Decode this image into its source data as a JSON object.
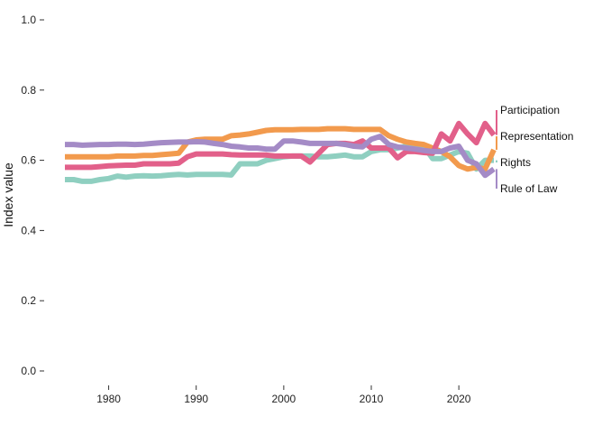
{
  "chart_data": {
    "type": "line",
    "title": "",
    "xlabel": "",
    "ylabel": "Index value",
    "xlim": [
      1975,
      2024
    ],
    "ylim": [
      0,
      1
    ],
    "x_ticks": [
      1980,
      1990,
      2000,
      2010,
      2020
    ],
    "y_ticks": [
      "0.0",
      "0.2",
      "0.4",
      "0.6",
      "0.8",
      "1.0"
    ],
    "grid": false,
    "legend": "direct labels at right end of lines",
    "series": [
      {
        "name": "Rights",
        "color": "#8fcfc0",
        "x": [
          1975,
          1976,
          1977,
          1978,
          1979,
          1980,
          1981,
          1982,
          1983,
          1984,
          1985,
          1986,
          1987,
          1988,
          1989,
          1990,
          1991,
          1992,
          1993,
          1994,
          1995,
          1996,
          1997,
          1998,
          1999,
          2000,
          2001,
          2002,
          2003,
          2004,
          2005,
          2006,
          2007,
          2008,
          2009,
          2010,
          2011,
          2012,
          2013,
          2014,
          2015,
          2016,
          2017,
          2018,
          2019,
          2020,
          2021,
          2022,
          2023,
          2024
        ],
        "values": [
          0.545,
          0.545,
          0.54,
          0.54,
          0.545,
          0.548,
          0.555,
          0.552,
          0.555,
          0.556,
          0.555,
          0.556,
          0.558,
          0.56,
          0.558,
          0.56,
          0.56,
          0.56,
          0.56,
          0.558,
          0.59,
          0.59,
          0.59,
          0.6,
          0.605,
          0.61,
          0.612,
          0.612,
          0.612,
          0.61,
          0.61,
          0.612,
          0.615,
          0.61,
          0.61,
          0.625,
          0.63,
          0.63,
          0.635,
          0.64,
          0.645,
          0.64,
          0.605,
          0.605,
          0.615,
          0.625,
          0.62,
          0.575,
          0.6,
          0.6
        ]
      },
      {
        "name": "Representation",
        "color": "#f29a4d",
        "x": [
          1975,
          1976,
          1977,
          1978,
          1979,
          1980,
          1981,
          1982,
          1983,
          1984,
          1985,
          1986,
          1987,
          1988,
          1989,
          1990,
          1991,
          1992,
          1993,
          1994,
          1995,
          1996,
          1997,
          1998,
          1999,
          2000,
          2001,
          2002,
          2003,
          2004,
          2005,
          2006,
          2007,
          2008,
          2009,
          2010,
          2011,
          2012,
          2013,
          2014,
          2015,
          2016,
          2017,
          2018,
          2019,
          2020,
          2021,
          2022,
          2023,
          2024
        ],
        "values": [
          0.61,
          0.61,
          0.61,
          0.61,
          0.61,
          0.61,
          0.612,
          0.612,
          0.612,
          0.614,
          0.614,
          0.616,
          0.618,
          0.62,
          0.652,
          0.658,
          0.66,
          0.66,
          0.66,
          0.67,
          0.672,
          0.675,
          0.68,
          0.685,
          0.687,
          0.687,
          0.687,
          0.688,
          0.688,
          0.688,
          0.69,
          0.69,
          0.69,
          0.688,
          0.688,
          0.688,
          0.688,
          0.67,
          0.66,
          0.652,
          0.648,
          0.645,
          0.635,
          0.625,
          0.61,
          0.585,
          0.575,
          0.58,
          0.575,
          0.63
        ]
      },
      {
        "name": "Participation",
        "color": "#e2608a",
        "x": [
          1975,
          1976,
          1977,
          1978,
          1979,
          1980,
          1981,
          1982,
          1983,
          1984,
          1985,
          1986,
          1987,
          1988,
          1989,
          1990,
          1991,
          1992,
          1993,
          1994,
          1995,
          1996,
          1997,
          1998,
          1999,
          2000,
          2001,
          2002,
          2003,
          2004,
          2005,
          2006,
          2007,
          2008,
          2009,
          2010,
          2011,
          2012,
          2013,
          2014,
          2015,
          2016,
          2017,
          2018,
          2019,
          2020,
          2021,
          2022,
          2023,
          2024
        ],
        "values": [
          0.58,
          0.58,
          0.58,
          0.58,
          0.582,
          0.584,
          0.585,
          0.586,
          0.586,
          0.59,
          0.59,
          0.59,
          0.59,
          0.592,
          0.61,
          0.618,
          0.618,
          0.618,
          0.618,
          0.616,
          0.615,
          0.615,
          0.615,
          0.615,
          0.612,
          0.612,
          0.612,
          0.612,
          0.595,
          0.62,
          0.645,
          0.648,
          0.648,
          0.645,
          0.655,
          0.635,
          0.635,
          0.635,
          0.607,
          0.625,
          0.625,
          0.622,
          0.62,
          0.675,
          0.655,
          0.705,
          0.675,
          0.65,
          0.705,
          0.672
        ]
      },
      {
        "name": "Rule of Law",
        "color": "#a48bc6",
        "x": [
          1975,
          1976,
          1977,
          1978,
          1979,
          1980,
          1981,
          1982,
          1983,
          1984,
          1985,
          1986,
          1987,
          1988,
          1989,
          1990,
          1991,
          1992,
          1993,
          1994,
          1995,
          1996,
          1997,
          1998,
          1999,
          2000,
          2001,
          2002,
          2003,
          2004,
          2005,
          2006,
          2007,
          2008,
          2009,
          2010,
          2011,
          2012,
          2013,
          2014,
          2015,
          2016,
          2017,
          2018,
          2019,
          2020,
          2021,
          2022,
          2023,
          2024
        ],
        "values": [
          0.645,
          0.645,
          0.643,
          0.644,
          0.645,
          0.645,
          0.646,
          0.646,
          0.645,
          0.646,
          0.648,
          0.65,
          0.651,
          0.652,
          0.652,
          0.653,
          0.652,
          0.648,
          0.645,
          0.64,
          0.638,
          0.635,
          0.635,
          0.632,
          0.632,
          0.655,
          0.655,
          0.652,
          0.648,
          0.648,
          0.648,
          0.648,
          0.645,
          0.64,
          0.638,
          0.66,
          0.668,
          0.645,
          0.638,
          0.635,
          0.632,
          0.628,
          0.625,
          0.625,
          0.635,
          0.64,
          0.6,
          0.59,
          0.557,
          0.575
        ]
      }
    ],
    "labels": [
      {
        "series": "Participation",
        "text": "Participation"
      },
      {
        "series": "Representation",
        "text": "Representation"
      },
      {
        "series": "Rights",
        "text": "Rights"
      },
      {
        "series": "Rule of Law",
        "text": "Rule of Law"
      }
    ]
  }
}
